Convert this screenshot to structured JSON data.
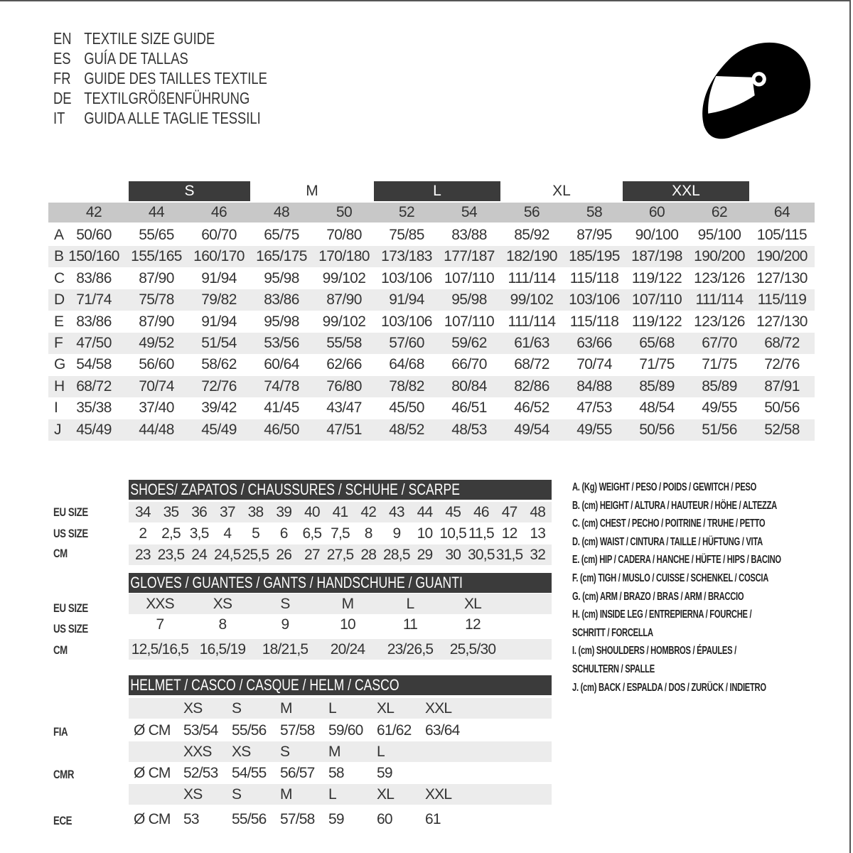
{
  "titles": [
    {
      "code": "EN",
      "text": "TEXTILE SIZE GUIDE"
    },
    {
      "code": "ES",
      "text": "GUÍA DE TALLAS"
    },
    {
      "code": "FR",
      "text": "GUIDE DES TAILLES TEXTILE"
    },
    {
      "code": "DE",
      "text": "TEXTILGRÖßENFÜHRUNG"
    },
    {
      "code": "IT",
      "text": "GUIDA ALLE TAGLIE TESSILI"
    }
  ],
  "icon": "helmet-icon",
  "colors": {
    "dark_band": "#3b3b3b",
    "size_row": "#c8c8c8",
    "alt_row": "#ececec",
    "text": "#333333"
  },
  "textile": {
    "letter_sizes": [
      "S",
      "M",
      "L",
      "XL",
      "XXL"
    ],
    "eu_sizes": [
      "42",
      "44",
      "46",
      "48",
      "50",
      "52",
      "54",
      "56",
      "58",
      "60",
      "62",
      "64"
    ],
    "rows": [
      {
        "label": "A",
        "values": [
          "50/60",
          "55/65",
          "60/70",
          "65/75",
          "70/80",
          "75/85",
          "83/88",
          "85/92",
          "87/95",
          "90/100",
          "95/100",
          "105/115"
        ]
      },
      {
        "label": "B",
        "values": [
          "150/160",
          "155/165",
          "160/170",
          "165/175",
          "170/180",
          "173/183",
          "177/187",
          "182/190",
          "185/195",
          "187/198",
          "190/200",
          "190/200"
        ]
      },
      {
        "label": "C",
        "values": [
          "83/86",
          "87/90",
          "91/94",
          "95/98",
          "99/102",
          "103/106",
          "107/110",
          "111/114",
          "115/118",
          "119/122",
          "123/126",
          "127/130"
        ]
      },
      {
        "label": "D",
        "values": [
          "71/74",
          "75/78",
          "79/82",
          "83/86",
          "87/90",
          "91/94",
          "95/98",
          "99/102",
          "103/106",
          "107/110",
          "111/114",
          "115/119"
        ]
      },
      {
        "label": "E",
        "values": [
          "83/86",
          "87/90",
          "91/94",
          "95/98",
          "99/102",
          "103/106",
          "107/110",
          "111/114",
          "115/118",
          "119/122",
          "123/126",
          "127/130"
        ]
      },
      {
        "label": "F",
        "values": [
          "47/50",
          "49/52",
          "51/54",
          "53/56",
          "55/58",
          "57/60",
          "59/62",
          "61/63",
          "63/66",
          "65/68",
          "67/70",
          "68/72"
        ]
      },
      {
        "label": "G",
        "values": [
          "54/58",
          "56/60",
          "58/62",
          "60/64",
          "62/66",
          "64/68",
          "66/70",
          "68/72",
          "70/74",
          "71/75",
          "71/75",
          "72/76"
        ]
      },
      {
        "label": "H",
        "values": [
          "68/72",
          "70/74",
          "72/76",
          "74/78",
          "76/80",
          "78/82",
          "80/84",
          "82/86",
          "84/88",
          "85/89",
          "85/89",
          "87/91"
        ]
      },
      {
        "label": "I",
        "values": [
          "35/38",
          "37/40",
          "39/42",
          "41/45",
          "43/47",
          "45/50",
          "46/51",
          "46/52",
          "47/53",
          "48/54",
          "49/55",
          "50/56"
        ]
      },
      {
        "label": "J",
        "values": [
          "45/49",
          "44/48",
          "45/49",
          "46/50",
          "47/51",
          "48/52",
          "48/53",
          "49/54",
          "49/55",
          "50/56",
          "51/56",
          "52/58"
        ]
      }
    ]
  },
  "shoes": {
    "title": "SHOES/ ZAPATOS / CHAUSSURES / SCHUHE / SCARPE",
    "rows": [
      {
        "label": "EU SIZE",
        "values": [
          "34",
          "35",
          "36",
          "37",
          "38",
          "39",
          "40",
          "41",
          "42",
          "43",
          "44",
          "45",
          "46",
          "47",
          "48"
        ]
      },
      {
        "label": "US SIZE",
        "values": [
          "2",
          "2,5",
          "3,5",
          "4",
          "5",
          "6",
          "6,5",
          "7,5",
          "8",
          "9",
          "10",
          "10,5",
          "11,5",
          "12",
          "13"
        ]
      },
      {
        "label": "CM",
        "values": [
          "23",
          "23,5",
          "24",
          "24,5",
          "25,5",
          "26",
          "27",
          "27,5",
          "28",
          "28,5",
          "29",
          "30",
          "30,5",
          "31,5",
          "32"
        ]
      }
    ]
  },
  "gloves": {
    "title": "GLOVES / GUANTES / GANTS / HANDSCHUHE / GUANTI",
    "rows": [
      {
        "label": "EU SIZE",
        "values": [
          "XXS",
          "XS",
          "S",
          "M",
          "L",
          "XL"
        ]
      },
      {
        "label": "US SIZE",
        "values": [
          "7",
          "8",
          "9",
          "10",
          "11",
          "12"
        ]
      },
      {
        "label": "CM",
        "values": [
          "12,5/16,5",
          "16,5/19",
          "18/21,5",
          "20/24",
          "23/26,5",
          "25,5/30"
        ]
      }
    ]
  },
  "helmet": {
    "title": "HELMET / CASCO / CASQUE / HELM / CASCO",
    "unit": "Ø CM",
    "standards": [
      {
        "label": "FIA",
        "sizes": [
          "XS",
          "S",
          "M",
          "L",
          "XL",
          "XXL"
        ],
        "values": [
          "53/54",
          "55/56",
          "57/58",
          "59/60",
          "61/62",
          "63/64"
        ]
      },
      {
        "label": "CMR",
        "sizes": [
          "XXS",
          "XS",
          "S",
          "M",
          "L"
        ],
        "values": [
          "52/53",
          "54/55",
          "56/57",
          "58",
          "59"
        ]
      },
      {
        "label": "ECE",
        "sizes": [
          "XS",
          "S",
          "M",
          "L",
          "XL",
          "XXL"
        ],
        "values": [
          "53",
          "55/56",
          "57/58",
          "59",
          "60",
          "61"
        ]
      }
    ]
  },
  "legend": [
    "A. (Kg) WEIGHT / PESO / POIDS / GEWITCH / PESO",
    "B. (cm) HEIGHT / ALTURA / HAUTEUR / HÖHE / ALTEZZA",
    "C. (cm) CHEST / PECHO / POITRINE / TRUHE / PETTO",
    "D. (cm) WAIST / CINTURA / TAILLE / HÜFTUNG / VITA",
    "E. (cm) HIP / CADERA / HANCHE / HÜFTE / HIPS /  BACINO",
    "F.  (cm) TIGH / MUSLO / CUISSE / SCHENKEL / COSCIA",
    "G. (cm) ARM  / BRAZO / BRAS / ARM / BRACCIO",
    "H. (cm) INSIDE LEG / ENTREPIERNA / FOURCHE /",
    "SCHRITT / FORCELLA",
    "I.  (cm) SHOULDERS / HOMBROS / ÉPAULES /",
    "SCHULTERN / SPALLE",
    "J. (cm) BACK / ESPALDA / DOS / ZURÜCK / INDIETRO"
  ]
}
